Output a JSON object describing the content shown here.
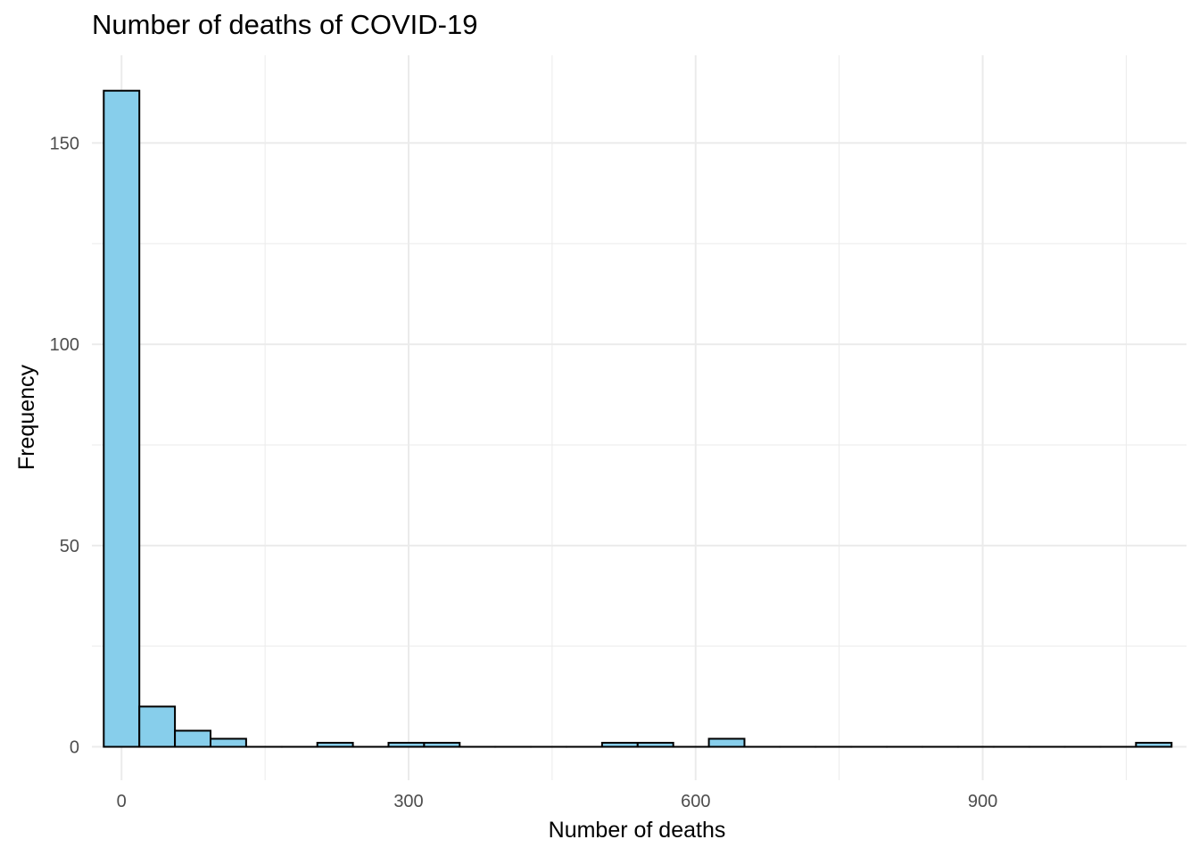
{
  "chart_data": {
    "type": "bar",
    "subtype": "histogram",
    "title": "Number of deaths of COVID-19",
    "xlabel": "Number of deaths",
    "ylabel": "Frequency",
    "xlim": [
      -31,
      1113
    ],
    "ylim": [
      -8.3,
      171.8
    ],
    "x_ticks": [
      0,
      300,
      600,
      900
    ],
    "x_tick_labels": [
      "0",
      "300",
      "600",
      "900"
    ],
    "y_ticks": [
      0,
      50,
      100,
      150
    ],
    "y_tick_labels": [
      "0",
      "50",
      "100",
      "150"
    ],
    "grid": true,
    "bin_width": 37.2,
    "bins": [
      {
        "start": -18.6,
        "end": 18.6,
        "count": 163
      },
      {
        "start": 18.6,
        "end": 55.8,
        "count": 10
      },
      {
        "start": 55.8,
        "end": 93.0,
        "count": 4
      },
      {
        "start": 93.0,
        "end": 130.2,
        "count": 2
      },
      {
        "start": 130.2,
        "end": 167.4,
        "count": 0
      },
      {
        "start": 167.4,
        "end": 204.6,
        "count": 0
      },
      {
        "start": 204.6,
        "end": 241.8,
        "count": 1
      },
      {
        "start": 241.8,
        "end": 279.0,
        "count": 0
      },
      {
        "start": 279.0,
        "end": 316.2,
        "count": 1
      },
      {
        "start": 316.2,
        "end": 353.4,
        "count": 1
      },
      {
        "start": 353.4,
        "end": 390.6,
        "count": 0
      },
      {
        "start": 390.6,
        "end": 427.8,
        "count": 0
      },
      {
        "start": 427.8,
        "end": 465.0,
        "count": 0
      },
      {
        "start": 465.0,
        "end": 502.2,
        "count": 0
      },
      {
        "start": 502.2,
        "end": 539.4,
        "count": 1
      },
      {
        "start": 539.4,
        "end": 576.6,
        "count": 1
      },
      {
        "start": 576.6,
        "end": 613.8,
        "count": 0
      },
      {
        "start": 613.8,
        "end": 651.0,
        "count": 2
      },
      {
        "start": 651.0,
        "end": 688.2,
        "count": 0
      },
      {
        "start": 688.2,
        "end": 725.4,
        "count": 0
      },
      {
        "start": 725.4,
        "end": 762.6,
        "count": 0
      },
      {
        "start": 762.6,
        "end": 799.8,
        "count": 0
      },
      {
        "start": 799.8,
        "end": 837.0,
        "count": 0
      },
      {
        "start": 837.0,
        "end": 874.2,
        "count": 0
      },
      {
        "start": 874.2,
        "end": 911.4,
        "count": 0
      },
      {
        "start": 911.4,
        "end": 948.6,
        "count": 0
      },
      {
        "start": 948.6,
        "end": 985.8,
        "count": 0
      },
      {
        "start": 985.8,
        "end": 1023.0,
        "count": 0
      },
      {
        "start": 1023.0,
        "end": 1060.2,
        "count": 0
      },
      {
        "start": 1060.2,
        "end": 1097.4,
        "count": 1
      }
    ],
    "colors": {
      "fill": "#87CEEB",
      "stroke": "#000000",
      "grid": "#ebebeb",
      "tick_label": "#4d4d4d"
    }
  }
}
